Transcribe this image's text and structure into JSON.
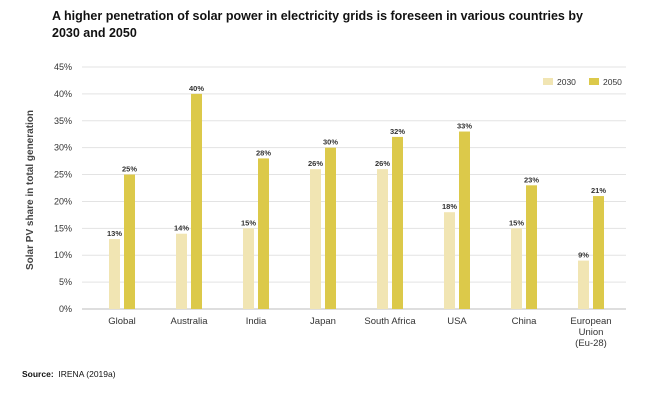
{
  "chart_data": {
    "type": "bar",
    "title": "A higher penetration of solar power in electricity grids is foreseen in various countries by 2030 and 2050",
    "xlabel": "",
    "ylabel": "Solar PV share in total generation",
    "ylim": [
      0,
      45
    ],
    "yticks": [
      "0%",
      "5%",
      "10%",
      "15%",
      "20%",
      "25%",
      "30%",
      "35%",
      "40%",
      "45%"
    ],
    "grid": true,
    "legend_position": "top-right",
    "categories": [
      [
        "Global"
      ],
      [
        "Australia"
      ],
      [
        "India"
      ],
      [
        "Japan"
      ],
      [
        "South Africa"
      ],
      [
        "USA"
      ],
      [
        "China"
      ],
      [
        "European",
        "Union",
        "(Eu-28)"
      ]
    ],
    "series": [
      {
        "name": "2030",
        "color": "#f1e5b3",
        "values": [
          13,
          14,
          15,
          26,
          26,
          18,
          15,
          9
        ],
        "labels": [
          "13%",
          "14%",
          "15%",
          "26%",
          "26%",
          "18%",
          "15%",
          "9%"
        ]
      },
      {
        "name": "2050",
        "color": "#dcc94a",
        "values": [
          25,
          40,
          28,
          30,
          32,
          33,
          23,
          21
        ],
        "labels": [
          "25%",
          "40%",
          "28%",
          "30%",
          "32%",
          "33%",
          "23%",
          "21%"
        ]
      }
    ]
  },
  "source": {
    "label": "Source:",
    "text": "IRENA (2019a)"
  }
}
